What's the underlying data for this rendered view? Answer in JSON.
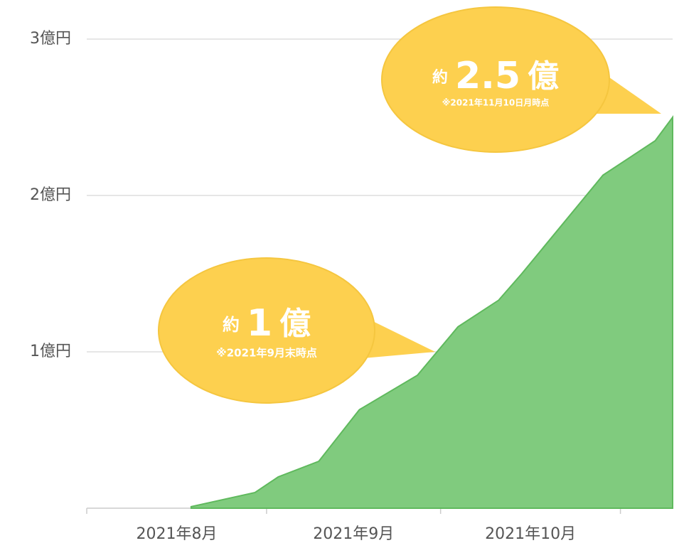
{
  "chart_data": {
    "type": "area",
    "categories": [
      "2021年8月",
      "2021年9月",
      "2021年10月"
    ],
    "x": [
      18,
      29,
      33,
      40,
      47,
      57,
      64,
      71,
      75,
      89,
      98,
      101
    ],
    "values": [
      0.01,
      0.1,
      0.2,
      0.3,
      0.63,
      0.85,
      1.16,
      1.33,
      1.5,
      2.13,
      2.35,
      2.5
    ],
    "color": "#80cb7e",
    "xlim": [
      0,
      101
    ],
    "xticks": [
      0,
      31,
      61,
      92
    ],
    "ylim": [
      0,
      3
    ],
    "yticks": [
      0,
      {
        "value": 1,
        "label": "1億円"
      },
      {
        "value": 2,
        "label": "2億円"
      },
      {
        "value": 3,
        "label": "3億円"
      }
    ],
    "grid": true,
    "annotations": [
      {
        "prefix": "約",
        "value": 1,
        "unit": "億",
        "note": "※2021年9月末時点"
      },
      {
        "prefix": "約",
        "value": 2.5,
        "unit": "億",
        "note": "※2021年11月10日月時点"
      }
    ]
  }
}
